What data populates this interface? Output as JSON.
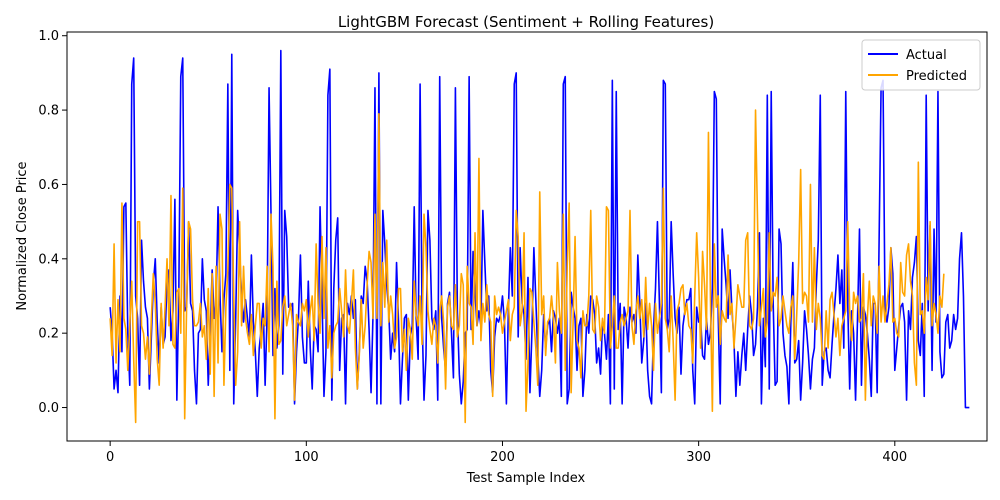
{
  "chart_data": {
    "type": "line",
    "title": "LightGBM Forecast (Sentiment + Rolling Features)",
    "xlabel": "Test Sample Index",
    "ylabel": "Normalized Close Price",
    "xlim": [
      -22,
      447
    ],
    "ylim": [
      -0.09,
      1.01
    ],
    "xticks": [
      0,
      100,
      200,
      300,
      400
    ],
    "yticks": [
      0.0,
      0.2,
      0.4,
      0.6,
      0.8,
      1.0
    ],
    "ytick_labels": [
      "0.0",
      "0.2",
      "0.4",
      "0.6",
      "0.8",
      "1.0"
    ],
    "legend_position": "top-right",
    "grid": false,
    "series": [
      {
        "name": "Actual",
        "color": "#0000ff",
        "values": [
          0.27,
          0.2,
          0.05,
          0.1,
          0.04,
          0.3,
          0.15,
          0.54,
          0.55,
          0.2,
          0.06,
          0.87,
          0.94,
          0.3,
          0.24,
          0.06,
          0.45,
          0.34,
          0.27,
          0.24,
          0.05,
          0.19,
          0.33,
          0.4,
          0.23,
          0.12,
          0.27,
          0.17,
          0.19,
          0.34,
          0.37,
          0.18,
          0.26,
          0.56,
          0.02,
          0.31,
          0.89,
          0.94,
          0.26,
          0.27,
          0.5,
          0.28,
          0.26,
          0.1,
          0.01,
          0.2,
          0.21,
          0.4,
          0.29,
          0.26,
          0.06,
          0.2,
          0.37,
          0.24,
          0.28,
          0.54,
          0.3,
          0.15,
          0.29,
          0.36,
          0.87,
          0.1,
          0.95,
          0.01,
          0.24,
          0.53,
          0.42,
          0.3,
          0.23,
          0.29,
          0.24,
          0.19,
          0.41,
          0.23,
          0.15,
          0.03,
          0.16,
          0.21,
          0.28,
          0.06,
          0.25,
          0.86,
          0.52,
          0.14,
          0.32,
          0.16,
          0.22,
          0.96,
          0.09,
          0.53,
          0.46,
          0.27,
          0.27,
          0.28,
          0.01,
          0.15,
          0.24,
          0.41,
          0.19,
          0.12,
          0.12,
          0.34,
          0.16,
          0.05,
          0.22,
          0.21,
          0.15,
          0.54,
          0.3,
          0.03,
          0.15,
          0.84,
          0.91,
          0.02,
          0.32,
          0.45,
          0.51,
          0.1,
          0.24,
          0.25,
          0.01,
          0.28,
          0.25,
          0.3,
          0.24,
          0.29,
          0.05,
          0.15,
          0.3,
          0.28,
          0.38,
          0.34,
          0.21,
          0.04,
          0.25,
          0.86,
          0.01,
          0.9,
          0.01,
          0.53,
          0.44,
          0.33,
          0.26,
          0.13,
          0.2,
          0.15,
          0.39,
          0.23,
          0.01,
          0.13,
          0.24,
          0.25,
          0.02,
          0.19,
          0.22,
          0.54,
          0.24,
          0.13,
          0.87,
          0.25,
          0.02,
          0.14,
          0.53,
          0.45,
          0.24,
          0.21,
          0.26,
          0.02,
          0.89,
          0.24,
          0.16,
          0.1,
          0.28,
          0.31,
          0.2,
          0.08,
          0.86,
          0.26,
          0.09,
          0.01,
          0.07,
          0.2,
          0.21,
          0.89,
          0.21,
          0.42,
          0.31,
          0.22,
          0.26,
          0.22,
          0.53,
          0.39,
          0.26,
          0.3,
          0.1,
          0.04,
          0.19,
          0.24,
          0.23,
          0.25,
          0.3,
          0.23,
          0.01,
          0.26,
          0.43,
          0.3,
          0.87,
          0.9,
          0.19,
          0.43,
          0.28,
          0.25,
          0.13,
          0.35,
          0.04,
          0.2,
          0.43,
          0.29,
          0.14,
          0.03,
          0.1,
          0.25,
          0.16,
          0.22,
          0.24,
          0.15,
          0.26,
          0.24,
          0.2,
          0.24,
          0.03,
          0.87,
          0.89,
          0.01,
          0.05,
          0.31,
          0.27,
          0.24,
          0.1,
          0.22,
          0.24,
          0.03,
          0.1,
          0.25,
          0.2,
          0.3,
          0.29,
          0.25,
          0.12,
          0.16,
          0.09,
          0.23,
          0.2,
          0.13,
          0.25,
          0.01,
          0.88,
          0.05,
          0.85,
          0.21,
          0.28,
          0.01,
          0.27,
          0.24,
          0.16,
          0.27,
          0.23,
          0.25,
          0.2,
          0.41,
          0.28,
          0.12,
          0.18,
          0.28,
          0.1,
          0.03,
          0.01,
          0.21,
          0.32,
          0.5,
          0.28,
          0.04,
          0.88,
          0.87,
          0.21,
          0.24,
          0.5,
          0.36,
          0.24,
          0.2,
          0.27,
          0.09,
          0.22,
          0.26,
          0.29,
          0.29,
          0.32,
          0.1,
          0.01,
          0.27,
          0.23,
          0.24,
          0.14,
          0.13,
          0.24,
          0.17,
          0.2,
          0.32,
          0.85,
          0.83,
          0.24,
          0.01,
          0.48,
          0.4,
          0.33,
          0.24,
          0.37,
          0.26,
          0.18,
          0.03,
          0.15,
          0.06,
          0.14,
          0.2,
          0.1,
          0.21,
          0.3,
          0.25,
          0.14,
          0.17,
          0.27,
          0.47,
          0.01,
          0.24,
          0.11,
          0.84,
          0.05,
          0.85,
          0.28,
          0.06,
          0.07,
          0.48,
          0.44,
          0.2,
          0.14,
          0.11,
          0.01,
          0.23,
          0.39,
          0.12,
          0.13,
          0.18,
          0.02,
          0.12,
          0.26,
          0.21,
          0.14,
          0.05,
          0.13,
          0.16,
          0.33,
          0.45,
          0.84,
          0.06,
          0.15,
          0.16,
          0.1,
          0.08,
          0.17,
          0.25,
          0.32,
          0.41,
          0.28,
          0.37,
          0.16,
          0.85,
          0.28,
          0.05,
          0.26,
          0.2,
          0.02,
          0.24,
          0.48,
          0.06,
          0.27,
          0.25,
          0.2,
          0.13,
          0.03,
          0.28,
          0.28,
          0.04,
          0.45,
          0.86,
          0.88,
          0.27,
          0.23,
          0.27,
          0.43,
          0.36,
          0.1,
          0.16,
          0.22,
          0.27,
          0.28,
          0.23,
          0.02,
          0.26,
          0.21,
          0.35,
          0.39,
          0.46,
          0.18,
          0.14,
          0.28,
          0.03,
          0.84,
          0.26,
          0.49,
          0.1,
          0.48,
          0.23,
          0.85,
          0.15,
          0.08,
          0.09,
          0.23,
          0.25,
          0.16,
          0.18,
          0.25,
          0.21,
          0.24,
          0.4,
          0.47,
          0.3,
          0.0,
          0.0,
          0.0
        ]
      },
      {
        "name": "Predicted",
        "color": "#ffa500",
        "values": [
          0.24,
          0.14,
          0.44,
          0.12,
          0.29,
          0.15,
          0.55,
          0.24,
          0.21,
          0.1,
          0.22,
          0.34,
          0.13,
          -0.04,
          0.5,
          0.5,
          0.22,
          0.2,
          0.13,
          0.19,
          0.09,
          0.24,
          0.36,
          0.28,
          0.13,
          0.06,
          0.28,
          0.16,
          0.27,
          0.4,
          0.22,
          0.57,
          0.17,
          0.16,
          0.31,
          0.32,
          0.2,
          0.59,
          -0.03,
          0.28,
          0.5,
          0.48,
          0.29,
          0.22,
          0.22,
          0.23,
          0.28,
          0.19,
          0.22,
          0.13,
          0.32,
          0.09,
          0.36,
          0.03,
          0.38,
          0.12,
          0.52,
          0.48,
          0.06,
          0.27,
          0.37,
          0.6,
          0.59,
          0.3,
          0.06,
          0.15,
          0.5,
          0.22,
          0.38,
          0.24,
          0.2,
          0.17,
          0.25,
          0.14,
          0.22,
          0.28,
          0.28,
          0.16,
          0.24,
          0.22,
          0.38,
          0.15,
          0.52,
          0.38,
          -0.03,
          0.34,
          0.17,
          0.18,
          0.27,
          0.3,
          0.22,
          0.25,
          0.28,
          0.22,
          0.02,
          0.25,
          0.23,
          0.22,
          0.28,
          0.26,
          0.29,
          0.19,
          0.26,
          0.3,
          0.18,
          0.44,
          0.28,
          0.2,
          0.46,
          0.24,
          0.43,
          0.16,
          0.22,
          0.08,
          0.2,
          0.22,
          0.23,
          0.32,
          0.26,
          0.19,
          0.37,
          0.22,
          0.2,
          0.28,
          0.37,
          0.16,
          0.05,
          0.14,
          0.29,
          0.16,
          0.22,
          0.33,
          0.42,
          0.39,
          0.24,
          0.52,
          0.24,
          0.79,
          0.22,
          0.39,
          0.27,
          0.45,
          0.23,
          0.3,
          0.25,
          0.16,
          0.19,
          0.32,
          0.32,
          0.15,
          0.21,
          0.1,
          0.24,
          0.21,
          0.13,
          0.34,
          0.25,
          0.22,
          0.3,
          0.17,
          0.52,
          0.43,
          0.26,
          0.21,
          0.17,
          0.24,
          0.22,
          0.12,
          0.26,
          0.3,
          0.23,
          0.05,
          0.27,
          0.3,
          0.22,
          0.21,
          0.33,
          0.19,
          0.22,
          0.36,
          0.33,
          -0.04,
          0.38,
          0.28,
          0.27,
          0.17,
          0.47,
          0.22,
          0.67,
          0.18,
          0.28,
          0.23,
          0.33,
          0.25,
          0.23,
          0.03,
          0.3,
          0.25,
          0.27,
          0.25,
          0.2,
          0.23,
          0.26,
          0.29,
          0.18,
          0.25,
          0.27,
          0.53,
          0.46,
          0.22,
          0.26,
          0.47,
          -0.01,
          0.12,
          0.32,
          0.31,
          0.23,
          0.16,
          0.06,
          0.58,
          0.25,
          0.3,
          0.14,
          0.23,
          0.24,
          0.3,
          0.24,
          0.12,
          0.39,
          0.26,
          0.2,
          0.52,
          0.1,
          0.38,
          0.55,
          0.04,
          0.23,
          0.46,
          0.18,
          0.16,
          0.08,
          0.26,
          0.22,
          0.22,
          0.3,
          0.53,
          0.21,
          0.2,
          0.3,
          0.27,
          0.18,
          0.24,
          0.2,
          0.54,
          0.53,
          0.16,
          0.22,
          0.3,
          0.16,
          0.16,
          0.23,
          0.25,
          0.22,
          0.24,
          0.26,
          0.53,
          0.22,
          0.17,
          0.26,
          0.3,
          0.24,
          0.29,
          0.19,
          0.35,
          0.21,
          0.28,
          0.22,
          0.1,
          0.28,
          0.2,
          0.24,
          0.28,
          0.59,
          0.24,
          0.21,
          0.15,
          0.3,
          0.18,
          0.02,
          0.26,
          0.28,
          0.32,
          0.33,
          0.25,
          0.28,
          0.22,
          0.21,
          0.12,
          0.3,
          0.47,
          0.35,
          0.16,
          0.42,
          0.33,
          0.21,
          0.74,
          0.3,
          -0.01,
          0.44,
          0.27,
          0.3,
          0.17,
          0.26,
          0.24,
          0.23,
          0.41,
          0.25,
          0.28,
          0.16,
          0.24,
          0.33,
          0.3,
          0.27,
          0.27,
          0.45,
          0.47,
          0.22,
          0.21,
          0.24,
          0.8,
          0.51,
          0.22,
          0.27,
          0.32,
          0.19,
          0.23,
          0.47,
          0.26,
          0.31,
          0.3,
          0.35,
          0.22,
          0.24,
          0.3,
          0.26,
          0.22,
          0.2,
          0.27,
          0.3,
          0.13,
          0.25,
          0.39,
          0.64,
          0.28,
          0.31,
          0.3,
          0.23,
          0.6,
          0.23,
          0.43,
          0.21,
          0.28,
          0.24,
          0.14,
          0.13,
          0.26,
          0.16,
          0.29,
          0.31,
          0.25,
          0.19,
          0.24,
          0.14,
          0.22,
          0.24,
          0.26,
          0.5,
          0.26,
          0.18,
          0.31,
          0.28,
          0.3,
          0.23,
          0.24,
          0.36,
          0.02,
          0.24,
          0.34,
          0.22,
          0.3,
          0.28,
          0.2,
          0.38,
          0.23,
          0.3,
          0.23,
          0.28,
          0.33,
          0.43,
          0.23,
          0.24,
          0.2,
          0.19,
          0.39,
          0.31,
          0.3,
          0.41,
          0.44,
          0.34,
          0.3,
          0.12,
          0.06,
          0.66,
          0.25,
          0.26,
          0.2,
          0.35,
          0.29,
          0.5,
          0.22,
          0.28,
          0.25,
          0.2,
          0.3,
          0.27,
          0.36
        ]
      }
    ]
  }
}
